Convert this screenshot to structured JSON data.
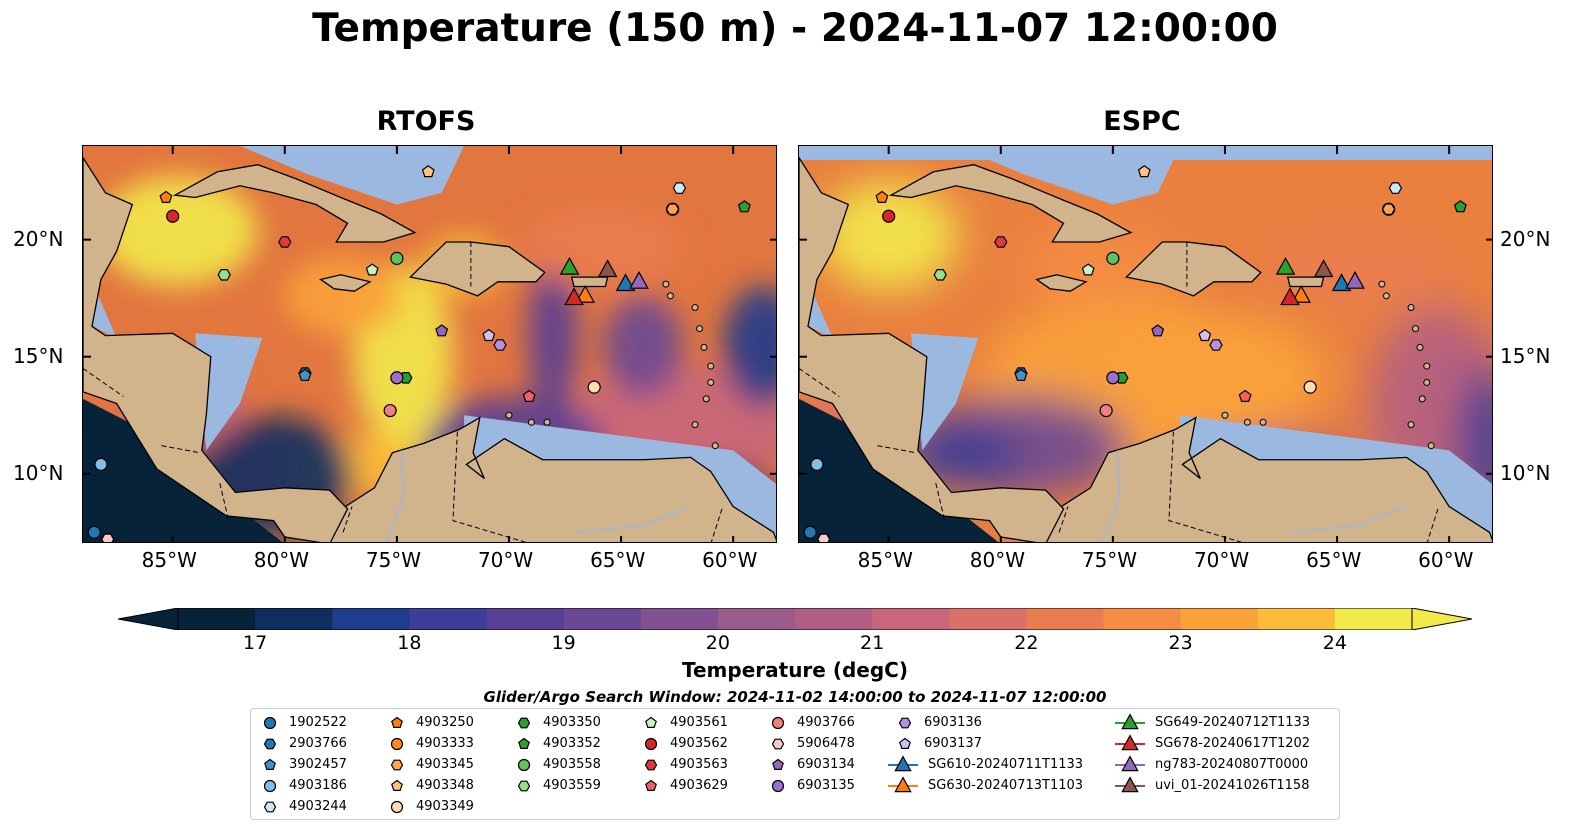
{
  "title": "Temperature (150 m) - 2024-11-07 12:00:00",
  "panels": [
    {
      "title": "RTOFS"
    },
    {
      "title": "ESPC"
    }
  ],
  "lon_ticks": [
    "85°W",
    "80°W",
    "75°W",
    "70°W",
    "65°W",
    "60°W"
  ],
  "lat_ticks": [
    "20°N",
    "15°N",
    "10°N"
  ],
  "map_extent": {
    "lon": [
      -89,
      -58
    ],
    "lat": [
      7,
      24
    ]
  },
  "colorbar": {
    "label": "Temperature (degC)",
    "ticks": [
      "17",
      "18",
      "19",
      "20",
      "21",
      "22",
      "23",
      "24"
    ],
    "range": [
      16.5,
      24.5
    ],
    "colors": [
      "#06233a",
      "#0d2e5f",
      "#203c8c",
      "#3d3e96",
      "#563f95",
      "#6a4893",
      "#825191",
      "#9a5a8c",
      "#b25e83",
      "#c8677b",
      "#db7067",
      "#ea7d50",
      "#f58c44",
      "#f9a23a",
      "#fbbc39",
      "#f2ea4a"
    ]
  },
  "search_window": "Glider/Argo Search Window: 2024-11-02 14:00:00 to 2024-11-07 12:00:00",
  "land_color": "#d2b48c",
  "shelf_color": "#9ab8e0",
  "legend": [
    {
      "label": "1902522",
      "shape": "circle",
      "color": "#1f77b4",
      "lon": -88.5,
      "lat": 7.5
    },
    {
      "label": "2903766",
      "shape": "hexagon",
      "color": "#1f77b4",
      "lon": -79.1,
      "lat": 14.3
    },
    {
      "label": "3902457",
      "shape": "pentagon",
      "color": "#4a90c8",
      "lon": -79.1,
      "lat": 14.2
    },
    {
      "label": "4903186",
      "shape": "circle",
      "color": "#7fbfe8",
      "lon": -88.2,
      "lat": 10.4
    },
    {
      "label": "4903244",
      "shape": "hexagon",
      "color": "#cde9f8",
      "lon": -62.4,
      "lat": 22.2
    },
    {
      "label": "4903250",
      "shape": "pentagon",
      "color": "#ff7f0e",
      "lon": -85.3,
      "lat": 21.8
    },
    {
      "label": "4903333",
      "shape": "circle",
      "color": "#ff8c1a",
      "lon": -62.7,
      "lat": 21.3
    },
    {
      "label": "4903345",
      "shape": "hexagon",
      "color": "#ffa54d",
      "lon": -62.7,
      "lat": 21.3
    },
    {
      "label": "4903348",
      "shape": "pentagon",
      "color": "#ffc27f",
      "lon": -73.6,
      "lat": 22.9
    },
    {
      "label": "4903349",
      "shape": "circle",
      "color": "#ffdcb0",
      "lon": -66.2,
      "lat": 13.7
    },
    {
      "label": "4903350",
      "shape": "hexagon",
      "color": "#2ca02c",
      "lon": -74.6,
      "lat": 14.1
    },
    {
      "label": "4903352",
      "shape": "pentagon",
      "color": "#2ca02c",
      "lon": -59.5,
      "lat": 21.4
    },
    {
      "label": "4903558",
      "shape": "circle",
      "color": "#5cc45c",
      "lon": -75.0,
      "lat": 19.2
    },
    {
      "label": "4903559",
      "shape": "hexagon",
      "color": "#98df8a",
      "lon": -82.7,
      "lat": 18.5
    },
    {
      "label": "4903561",
      "shape": "pentagon",
      "color": "#c8f0c0",
      "lon": -76.1,
      "lat": 18.7
    },
    {
      "label": "4903562",
      "shape": "circle",
      "color": "#d62728",
      "lon": -85.0,
      "lat": 21.0
    },
    {
      "label": "4903563",
      "shape": "hexagon",
      "color": "#e03a3a",
      "lon": -80.0,
      "lat": 19.9
    },
    {
      "label": "4903629",
      "shape": "pentagon",
      "color": "#f06060",
      "lon": -69.1,
      "lat": 13.3
    },
    {
      "label": "4903766",
      "shape": "circle",
      "color": "#f08080",
      "lon": -75.3,
      "lat": 12.7
    },
    {
      "label": "5906478",
      "shape": "hexagon",
      "color": "#ffc8c8",
      "lon": -87.9,
      "lat": 7.2
    },
    {
      "label": "6903134",
      "shape": "pentagon",
      "color": "#9467bd",
      "lon": -73.0,
      "lat": 16.1
    },
    {
      "label": "6903135",
      "shape": "circle",
      "color": "#9b6fcc",
      "lon": -75.0,
      "lat": 14.1
    },
    {
      "label": "6903136",
      "shape": "hexagon",
      "color": "#b590e0",
      "lon": -70.4,
      "lat": 15.5
    },
    {
      "label": "6903137",
      "shape": "pentagon",
      "color": "#d4c0f0",
      "lon": -70.9,
      "lat": 15.9
    },
    {
      "label": "SG610-20240711T1133",
      "shape": "triangle",
      "color": "#1f77b4",
      "line": true,
      "lon": -64.8,
      "lat": 18.1
    },
    {
      "label": "SG630-20240713T1103",
      "shape": "triangle",
      "color": "#ff7f0e",
      "line": true,
      "lon": -66.6,
      "lat": 17.6
    },
    {
      "label": "SG649-20240712T1133",
      "shape": "triangle",
      "color": "#2ca02c",
      "line": true,
      "lon": -67.3,
      "lat": 18.8
    },
    {
      "label": "SG678-20240617T1202",
      "shape": "triangle",
      "color": "#d62728",
      "line": true,
      "lon": -67.1,
      "lat": 17.5
    },
    {
      "label": "ng783-20240807T0000",
      "shape": "triangle",
      "color": "#9467bd",
      "line": true,
      "lon": -64.2,
      "lat": 18.2
    },
    {
      "label": "uvi_01-20241026T1158",
      "shape": "triangle",
      "color": "#8c564b",
      "line": true,
      "lon": -65.6,
      "lat": 18.7
    }
  ]
}
